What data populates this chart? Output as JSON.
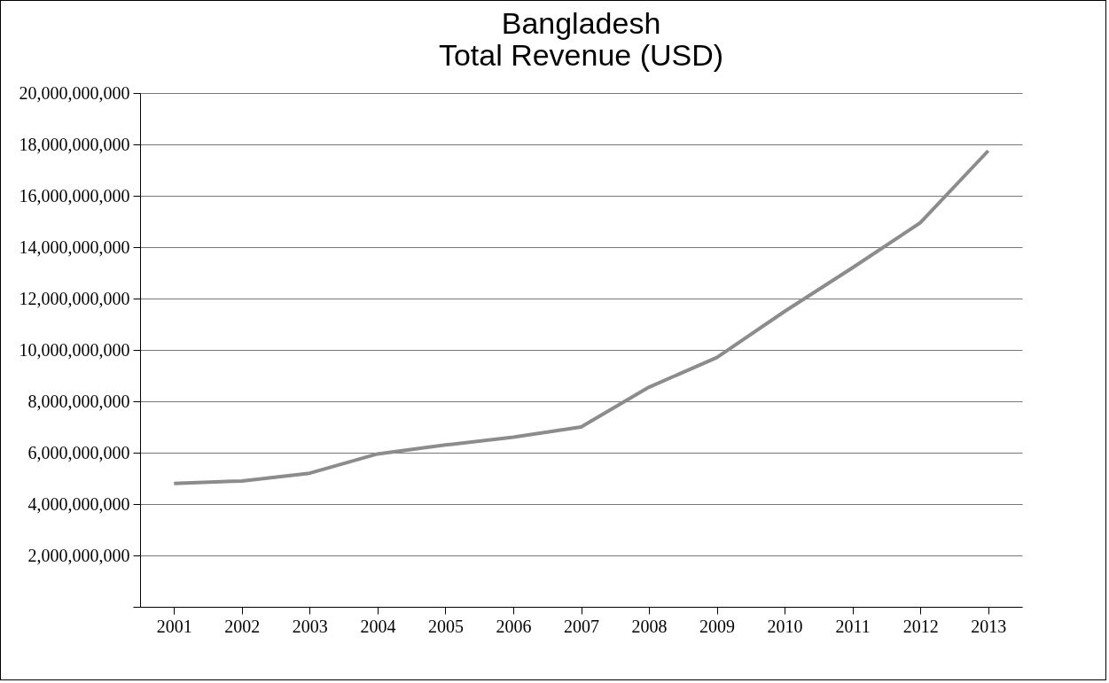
{
  "chart_data": {
    "type": "line",
    "title": "Bangladesh",
    "subtitle": "Total Revenue (USD)",
    "categories": [
      "2001",
      "2002",
      "2003",
      "2004",
      "2005",
      "2006",
      "2007",
      "2008",
      "2009",
      "2010",
      "2011",
      "2012",
      "2013"
    ],
    "series": [
      {
        "color": "#8c8c8c",
        "values": [
          4800000000,
          4900000000,
          5200000000,
          5950000000,
          6300000000,
          6600000000,
          7000000000,
          8550000000,
          9700000000,
          11500000000,
          13200000000,
          14950000000,
          17750000000
        ]
      }
    ],
    "ylim": [
      0,
      20000000000
    ],
    "yticks": [
      {
        "value": 0,
        "label": null
      },
      {
        "value": 2000000000,
        "label": "2,000,000,000"
      },
      {
        "value": 4000000000,
        "label": "4,000,000,000"
      },
      {
        "value": 6000000000,
        "label": "6,000,000,000"
      },
      {
        "value": 8000000000,
        "label": "8,000,000,000"
      },
      {
        "value": 10000000000,
        "label": "10,000,000,000"
      },
      {
        "value": 12000000000,
        "label": "12,000,000,000"
      },
      {
        "value": 14000000000,
        "label": "14,000,000,000"
      },
      {
        "value": 16000000000,
        "label": "16,000,000,000"
      },
      {
        "value": 18000000000,
        "label": "18,000,000,000"
      },
      {
        "value": 20000000000,
        "label": "20,000,000,000"
      }
    ],
    "grid": "y",
    "marker": "none",
    "line_style": "solid"
  }
}
